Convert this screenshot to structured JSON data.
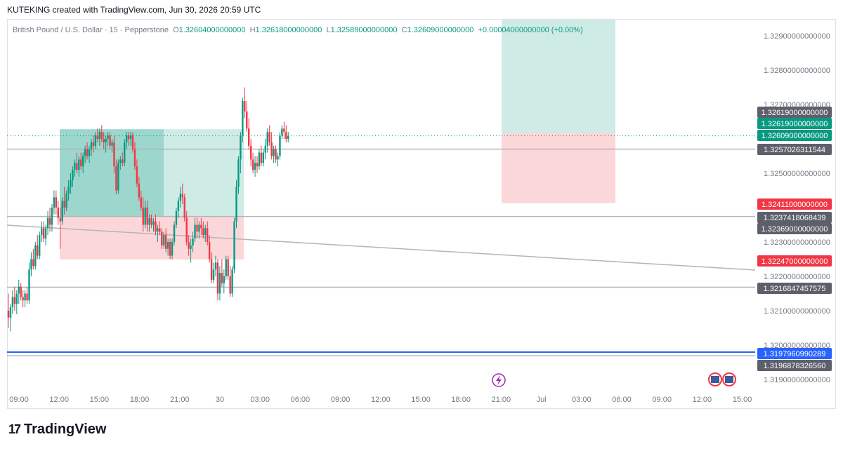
{
  "header": {
    "text": "KUTEKING created with TradingView.com, Jun 30, 2026 20:59 UTC"
  },
  "legend": {
    "symbol": "British Pound / U.S. Dollar · 15 · Pepperstone",
    "o_label": "O",
    "o_value": "1.32604000000000",
    "h_label": "H",
    "h_value": "1.32618000000000",
    "l_label": "L",
    "l_value": "1.32589000000000",
    "c_label": "C",
    "c_value": "1.32609000000000",
    "change": "+0.00004000000000 (+0.00%)"
  },
  "colors": {
    "up": "#089981",
    "down": "#f23645",
    "grid_text": "#787b86",
    "blue": "#2962ff",
    "gray_label": "#5d606b"
  },
  "footer": {
    "mark": "17",
    "brand": "TradingView"
  },
  "icons": {
    "lightning": "lightning-icon",
    "flag": "us-flag-icon"
  },
  "chart_data": {
    "type": "candlestick",
    "title": "British Pound / U.S. Dollar · 15 · Pepperstone",
    "ylim": [
      1.3185,
      1.3299
    ],
    "y_ticks": [
      "1.31900000000000",
      "1.32000000000000",
      "1.32100000000000",
      "1.32200000000000",
      "1.32300000000000",
      "1.32500000000000",
      "1.32700000000000",
      "1.32800000000000",
      "1.32900000000000"
    ],
    "y_tick_values": [
      1.319,
      1.32,
      1.321,
      1.322,
      1.323,
      1.325,
      1.327,
      1.328,
      1.329
    ],
    "x_ticks": [
      "09:00",
      "12:00",
      "15:00",
      "18:00",
      "21:00",
      "30",
      "03:00",
      "06:00",
      "09:00",
      "12:00",
      "15:00",
      "18:00",
      "21:00",
      "Jul",
      "03:00",
      "06:00",
      "09:00",
      "12:00",
      "15:00"
    ],
    "price_labels": [
      {
        "text": "1.32619000000000",
        "value": 1.32619,
        "color": "#5d606b"
      },
      {
        "text": "1.32619000000000",
        "value": 1.32619,
        "color": "#089981"
      },
      {
        "text": "1.32609000000000",
        "value": 1.32609,
        "color": "#089981"
      },
      {
        "text": "1.3257026311544",
        "value": 1.3257026311544,
        "color": "#5d606b"
      },
      {
        "text": "1.32411000000000",
        "value": 1.32411,
        "color": "#f23645"
      },
      {
        "text": "1.3237418068439",
        "value": 1.3237418068439,
        "color": "#5d606b"
      },
      {
        "text": "1.32369000000000",
        "value": 1.32369,
        "color": "#5d606b"
      },
      {
        "text": "1.32247000000000",
        "value": 1.32247,
        "color": "#f23645"
      },
      {
        "text": "1.3216847457575",
        "value": 1.3216847457575,
        "color": "#5d606b"
      },
      {
        "text": "1.3197960990289",
        "value": 1.3197960990289,
        "color": "#2962ff"
      },
      {
        "text": "1.3196878326560",
        "value": 1.319687832656,
        "color": "#5d606b"
      }
    ],
    "horizontal_lines": [
      {
        "value": 1.3257026311544,
        "color": "#b2b5be"
      },
      {
        "value": 1.3237418068439,
        "color": "#b2b5be"
      },
      {
        "value": 1.3216847457575,
        "color": "#b2b5be"
      },
      {
        "value": 1.3197960990289,
        "color": "#2962ff"
      },
      {
        "value": 1.319687832656,
        "color": "#b2b5be"
      }
    ],
    "trend_line": {
      "from": {
        "bar": 0,
        "value": 1.32375
      },
      "to": {
        "bar": 245,
        "value": 1.32214
      }
    },
    "position_boxes": [
      {
        "kind": "long",
        "bar_start": 18,
        "bar_end": 84,
        "entry": 1.32374,
        "target": 1.32628,
        "stop": 1.32249,
        "filled_until_bar": 55
      },
      {
        "kind": "short",
        "bar_start": 176,
        "bar_end": 219,
        "entry": 1.32619,
        "target": 1.3295,
        "stop": 1.32413
      }
    ],
    "candles": [
      [
        1.321,
        1.3215,
        1.3205,
        1.3208
      ],
      [
        1.3208,
        1.3212,
        1.3204,
        1.3211
      ],
      [
        1.3211,
        1.3216,
        1.3209,
        1.3214
      ],
      [
        1.3214,
        1.3217,
        1.321,
        1.3212
      ],
      [
        1.3212,
        1.3216,
        1.3209,
        1.3215
      ],
      [
        1.3215,
        1.3219,
        1.3212,
        1.3217
      ],
      [
        1.3217,
        1.3218,
        1.3213,
        1.3214
      ],
      [
        1.3214,
        1.3216,
        1.3211,
        1.3213
      ],
      [
        1.3213,
        1.3216,
        1.3211,
        1.3215
      ],
      [
        1.3215,
        1.3217,
        1.3212,
        1.3213
      ],
      [
        1.3213,
        1.3224,
        1.3212,
        1.3222
      ],
      [
        1.3222,
        1.3227,
        1.322,
        1.3225
      ],
      [
        1.3225,
        1.3228,
        1.3222,
        1.3223
      ],
      [
        1.3223,
        1.323,
        1.3222,
        1.3229
      ],
      [
        1.3229,
        1.3232,
        1.3225,
        1.3226
      ],
      [
        1.3226,
        1.3233,
        1.3225,
        1.3232
      ],
      [
        1.3232,
        1.3236,
        1.323,
        1.3234
      ],
      [
        1.3234,
        1.3236,
        1.323,
        1.3231
      ],
      [
        1.3231,
        1.3235,
        1.3229,
        1.3234
      ],
      [
        1.3234,
        1.3239,
        1.3232,
        1.3237
      ],
      [
        1.3237,
        1.324,
        1.3233,
        1.3235
      ],
      [
        1.3235,
        1.3241,
        1.3233,
        1.324
      ],
      [
        1.324,
        1.3245,
        1.3238,
        1.3243
      ],
      [
        1.3243,
        1.3245,
        1.3238,
        1.324
      ],
      [
        1.324,
        1.3242,
        1.3235,
        1.3237
      ],
      [
        1.3237,
        1.324,
        1.3228,
        1.3236
      ],
      [
        1.3236,
        1.3243,
        1.3235,
        1.3242
      ],
      [
        1.3242,
        1.3246,
        1.3238,
        1.324
      ],
      [
        1.324,
        1.3245,
        1.3239,
        1.3244
      ],
      [
        1.3244,
        1.3248,
        1.3242,
        1.3246
      ],
      [
        1.3246,
        1.325,
        1.3244,
        1.3248
      ],
      [
        1.3248,
        1.3252,
        1.3246,
        1.3251
      ],
      [
        1.3251,
        1.3254,
        1.3249,
        1.3253
      ],
      [
        1.3253,
        1.3256,
        1.325,
        1.3251
      ],
      [
        1.3251,
        1.3255,
        1.3249,
        1.3254
      ],
      [
        1.3254,
        1.3256,
        1.3251,
        1.3252
      ],
      [
        1.3252,
        1.3256,
        1.325,
        1.3255
      ],
      [
        1.3255,
        1.3258,
        1.3253,
        1.3257
      ],
      [
        1.3257,
        1.3259,
        1.3254,
        1.3255
      ],
      [
        1.3255,
        1.3258,
        1.3253,
        1.3257
      ],
      [
        1.3257,
        1.326,
        1.3255,
        1.3259
      ],
      [
        1.3259,
        1.3261,
        1.3256,
        1.3258
      ],
      [
        1.3258,
        1.3262,
        1.3257,
        1.3261
      ],
      [
        1.3261,
        1.3263,
        1.3259,
        1.326
      ],
      [
        1.326,
        1.3263,
        1.3258,
        1.3262
      ],
      [
        1.3262,
        1.3264,
        1.3259,
        1.326
      ],
      [
        1.326,
        1.3262,
        1.3257,
        1.3259
      ],
      [
        1.3259,
        1.3261,
        1.3256,
        1.326
      ],
      [
        1.326,
        1.3262,
        1.3258,
        1.3261
      ],
      [
        1.3261,
        1.3262,
        1.3257,
        1.3258
      ],
      [
        1.3258,
        1.326,
        1.3256,
        1.3259
      ],
      [
        1.3259,
        1.3261,
        1.325,
        1.3252
      ],
      [
        1.3252,
        1.3254,
        1.3244,
        1.3245
      ],
      [
        1.3245,
        1.3254,
        1.3244,
        1.3253
      ],
      [
        1.3253,
        1.3255,
        1.3251,
        1.3254
      ],
      [
        1.3254,
        1.3256,
        1.3252,
        1.3253
      ],
      [
        1.3253,
        1.326,
        1.3252,
        1.3259
      ],
      [
        1.3259,
        1.3262,
        1.3257,
        1.3261
      ],
      [
        1.3261,
        1.3262,
        1.3258,
        1.326
      ],
      [
        1.326,
        1.3262,
        1.3258,
        1.3261
      ],
      [
        1.3261,
        1.3262,
        1.3256,
        1.3257
      ],
      [
        1.3257,
        1.3259,
        1.3251,
        1.3252
      ],
      [
        1.3252,
        1.3254,
        1.3246,
        1.3247
      ],
      [
        1.3247,
        1.3249,
        1.3242,
        1.3243
      ],
      [
        1.3243,
        1.3245,
        1.3239,
        1.324
      ],
      [
        1.324,
        1.3243,
        1.3233,
        1.3235
      ],
      [
        1.3235,
        1.3242,
        1.3234,
        1.324
      ],
      [
        1.324,
        1.3242,
        1.3233,
        1.3235
      ],
      [
        1.3235,
        1.3238,
        1.3233,
        1.3237
      ],
      [
        1.3237,
        1.3238,
        1.3234,
        1.3235
      ],
      [
        1.3235,
        1.3237,
        1.3233,
        1.3236
      ],
      [
        1.3236,
        1.3238,
        1.3232,
        1.3233
      ],
      [
        1.3233,
        1.3235,
        1.323,
        1.3234
      ],
      [
        1.3234,
        1.3236,
        1.3232,
        1.3233
      ],
      [
        1.3233,
        1.3234,
        1.3228,
        1.3229
      ],
      [
        1.3229,
        1.3233,
        1.3228,
        1.3232
      ],
      [
        1.3232,
        1.3234,
        1.3227,
        1.3228
      ],
      [
        1.3228,
        1.3231,
        1.3226,
        1.323
      ],
      [
        1.323,
        1.3231,
        1.3225,
        1.3226
      ],
      [
        1.3226,
        1.3231,
        1.3225,
        1.323
      ],
      [
        1.323,
        1.3236,
        1.3229,
        1.3235
      ],
      [
        1.3235,
        1.324,
        1.3234,
        1.3239
      ],
      [
        1.3239,
        1.3243,
        1.3237,
        1.3242
      ],
      [
        1.3242,
        1.3246,
        1.324,
        1.3244
      ],
      [
        1.3244,
        1.3247,
        1.3241,
        1.3243
      ],
      [
        1.3243,
        1.3244,
        1.3236,
        1.3237
      ],
      [
        1.3237,
        1.3239,
        1.3229,
        1.323
      ],
      [
        1.323,
        1.3232,
        1.3226,
        1.3228
      ],
      [
        1.3228,
        1.3231,
        1.3224,
        1.3229
      ],
      [
        1.3229,
        1.3233,
        1.3227,
        1.3231
      ],
      [
        1.3231,
        1.3237,
        1.323,
        1.3235
      ],
      [
        1.3235,
        1.3237,
        1.3231,
        1.3233
      ],
      [
        1.3233,
        1.3236,
        1.3231,
        1.3235
      ],
      [
        1.3235,
        1.3237,
        1.3232,
        1.3234
      ],
      [
        1.3234,
        1.3236,
        1.3231,
        1.3232
      ],
      [
        1.3232,
        1.3235,
        1.323,
        1.3234
      ],
      [
        1.3234,
        1.3236,
        1.3229,
        1.323
      ],
      [
        1.323,
        1.3232,
        1.3224,
        1.3225
      ],
      [
        1.3225,
        1.3227,
        1.3218,
        1.3219
      ],
      [
        1.3219,
        1.3224,
        1.3218,
        1.3222
      ],
      [
        1.3222,
        1.3226,
        1.322,
        1.3224
      ],
      [
        1.3224,
        1.3225,
        1.3213,
        1.3215
      ],
      [
        1.3215,
        1.3223,
        1.3213,
        1.3221
      ],
      [
        1.3221,
        1.3225,
        1.3217,
        1.3218
      ],
      [
        1.3218,
        1.3222,
        1.3215,
        1.322
      ],
      [
        1.322,
        1.3226,
        1.3219,
        1.3225
      ],
      [
        1.3225,
        1.3226,
        1.3219,
        1.322
      ],
      [
        1.322,
        1.3223,
        1.3214,
        1.3215
      ],
      [
        1.3215,
        1.3223,
        1.3214,
        1.3222
      ],
      [
        1.3222,
        1.3237,
        1.3221,
        1.3236
      ],
      [
        1.3236,
        1.3248,
        1.3234,
        1.3246
      ],
      [
        1.3246,
        1.3255,
        1.3244,
        1.3254
      ],
      [
        1.3254,
        1.3262,
        1.325,
        1.3261
      ],
      [
        1.3261,
        1.3272,
        1.3259,
        1.3271
      ],
      [
        1.3271,
        1.3275,
        1.3266,
        1.3268
      ],
      [
        1.3268,
        1.3271,
        1.3262,
        1.3263
      ],
      [
        1.3263,
        1.3266,
        1.3257,
        1.3258
      ],
      [
        1.3258,
        1.326,
        1.3252,
        1.3254
      ],
      [
        1.3254,
        1.3256,
        1.325,
        1.3251
      ],
      [
        1.3251,
        1.3255,
        1.3249,
        1.3253
      ],
      [
        1.3253,
        1.3255,
        1.325,
        1.3252
      ],
      [
        1.3252,
        1.3257,
        1.3251,
        1.3256
      ],
      [
        1.3256,
        1.3258,
        1.3252,
        1.3253
      ],
      [
        1.3253,
        1.3257,
        1.3252,
        1.3256
      ],
      [
        1.3256,
        1.326,
        1.3254,
        1.3258
      ],
      [
        1.3258,
        1.3263,
        1.3256,
        1.3262
      ],
      [
        1.3262,
        1.3264,
        1.3258,
        1.3259
      ],
      [
        1.3259,
        1.3262,
        1.3254,
        1.3255
      ],
      [
        1.3255,
        1.3258,
        1.3253,
        1.3257
      ],
      [
        1.3257,
        1.3258,
        1.3253,
        1.3254
      ],
      [
        1.3254,
        1.3256,
        1.3252,
        1.3255
      ],
      [
        1.3255,
        1.3262,
        1.3254,
        1.3261
      ],
      [
        1.3261,
        1.3264,
        1.326,
        1.3263
      ],
      [
        1.3263,
        1.3265,
        1.326,
        1.3262
      ],
      [
        1.3262,
        1.3264,
        1.3259,
        1.326
      ],
      [
        1.326,
        1.3262,
        1.3259,
        1.32609
      ]
    ]
  }
}
